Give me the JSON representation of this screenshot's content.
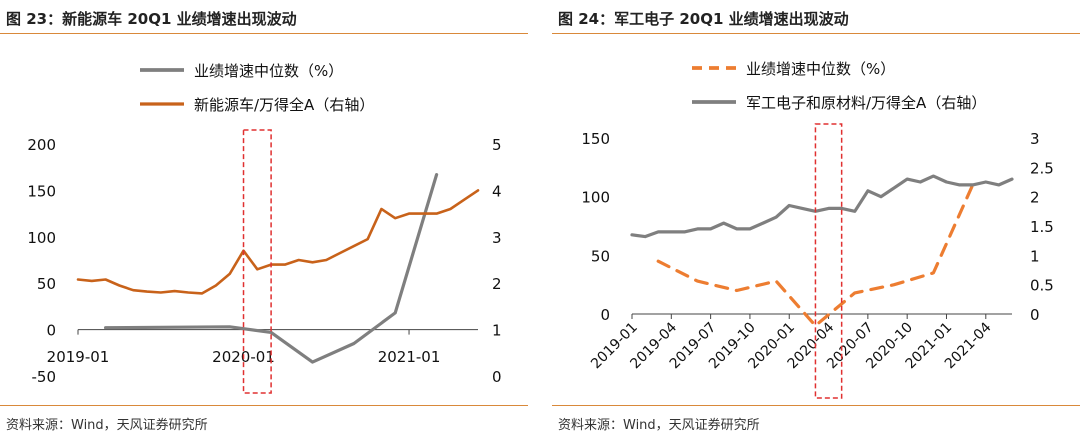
{
  "colors": {
    "orange": "#c8621a",
    "orange_light": "#ed7d31",
    "gray": "#7f7f7f",
    "red": "#e03030",
    "rule": "#d9893a"
  },
  "source_label": "资料来源：Wind，天风证券研究所",
  "panels": [
    {
      "title": "图 23：新能源车 20Q1 业绩增速出现波动",
      "legend": [
        "业绩增速中位数（%）",
        "新能源车/万得全A（右轴）"
      ]
    },
    {
      "title": "图 24：军工电子 20Q1 业绩增速出现波动",
      "legend": [
        "业绩增速中位数（%）",
        "军工电子和原材料/万得全A（右轴）"
      ]
    }
  ],
  "chart_data": [
    {
      "type": "line",
      "x_tick_labels": [
        "2019-01",
        "2020-01",
        "2021-01"
      ],
      "y_left": {
        "ticks": [
          200,
          150,
          100,
          50,
          0,
          -50
        ],
        "ylim": [
          -50,
          200
        ]
      },
      "y_right": {
        "ticks": [
          5,
          4,
          3,
          2,
          1,
          0
        ],
        "ylim": [
          0,
          5
        ]
      },
      "series": [
        {
          "name": "业绩增速中位数（%）",
          "axis": "left",
          "style": "solid-gray",
          "x": [
            "2019-03",
            "2019-12",
            "2020-03",
            "2020-06",
            "2020-09",
            "2020-12",
            "2021-03"
          ],
          "values": [
            2,
            3,
            -3,
            -35,
            -15,
            18,
            167
          ]
        },
        {
          "name": "新能源车/万得全A（右轴）",
          "axis": "right",
          "style": "solid-orange",
          "x": [
            "2019-01",
            "2019-02",
            "2019-03",
            "2019-04",
            "2019-05",
            "2019-06",
            "2019-07",
            "2019-08",
            "2019-09",
            "2019-10",
            "2019-11",
            "2019-12",
            "2020-01",
            "2020-02",
            "2020-03",
            "2020-04",
            "2020-05",
            "2020-06",
            "2020-07",
            "2020-08",
            "2020-09",
            "2020-10",
            "2020-11",
            "2020-12",
            "2021-01",
            "2021-02",
            "2021-03",
            "2021-04",
            "2021-05",
            "2021-06"
          ],
          "values": [
            2.08,
            2.05,
            2.08,
            1.95,
            1.85,
            1.82,
            1.8,
            1.83,
            1.8,
            1.78,
            1.95,
            2.2,
            2.7,
            2.3,
            2.4,
            2.4,
            2.5,
            2.45,
            2.5,
            2.65,
            2.8,
            2.95,
            3.6,
            3.4,
            3.5,
            3.5,
            3.5,
            3.6,
            3.8,
            4.0
          ]
        }
      ],
      "highlight": {
        "x_start": "2020-01",
        "x_end": "2020-03"
      }
    },
    {
      "type": "line",
      "x_tick_labels": [
        "2019-01",
        "2019-04",
        "2019-07",
        "2019-10",
        "2020-01",
        "2020-04",
        "2020-07",
        "2020-10",
        "2021-01",
        "2021-04"
      ],
      "y_left": {
        "ticks": [
          150,
          100,
          50,
          0
        ],
        "ylim": [
          0,
          150
        ]
      },
      "y_right": {
        "ticks": [
          3,
          2.5,
          2,
          1.5,
          1,
          0.5,
          0
        ],
        "ylim": [
          0,
          3
        ]
      },
      "series": [
        {
          "name": "业绩增速中位数（%）",
          "axis": "left",
          "style": "dashed-orange",
          "x": [
            "2019-03",
            "2019-06",
            "2019-09",
            "2019-12",
            "2020-03",
            "2020-06",
            "2020-09",
            "2020-12",
            "2021-03"
          ],
          "values": [
            45,
            28,
            20,
            28,
            -10,
            18,
            25,
            35,
            110
          ]
        },
        {
          "name": "军工电子和原材料/万得全A（右轴）",
          "axis": "right",
          "style": "solid-gray",
          "x": [
            "2019-01",
            "2019-02",
            "2019-03",
            "2019-04",
            "2019-05",
            "2019-06",
            "2019-07",
            "2019-08",
            "2019-09",
            "2019-10",
            "2019-11",
            "2019-12",
            "2020-01",
            "2020-02",
            "2020-03",
            "2020-04",
            "2020-05",
            "2020-06",
            "2020-07",
            "2020-08",
            "2020-09",
            "2020-10",
            "2020-11",
            "2020-12",
            "2021-01",
            "2021-02",
            "2021-03",
            "2021-04",
            "2021-05",
            "2021-06"
          ],
          "values": [
            1.35,
            1.32,
            1.4,
            1.4,
            1.4,
            1.45,
            1.45,
            1.55,
            1.45,
            1.45,
            1.55,
            1.65,
            1.85,
            1.8,
            1.75,
            1.8,
            1.8,
            1.75,
            2.1,
            2.0,
            2.15,
            2.3,
            2.25,
            2.35,
            2.25,
            2.2,
            2.2,
            2.25,
            2.2,
            2.3
          ]
        }
      ],
      "highlight": {
        "x_start": "2020-03",
        "x_end": "2020-05"
      }
    }
  ]
}
